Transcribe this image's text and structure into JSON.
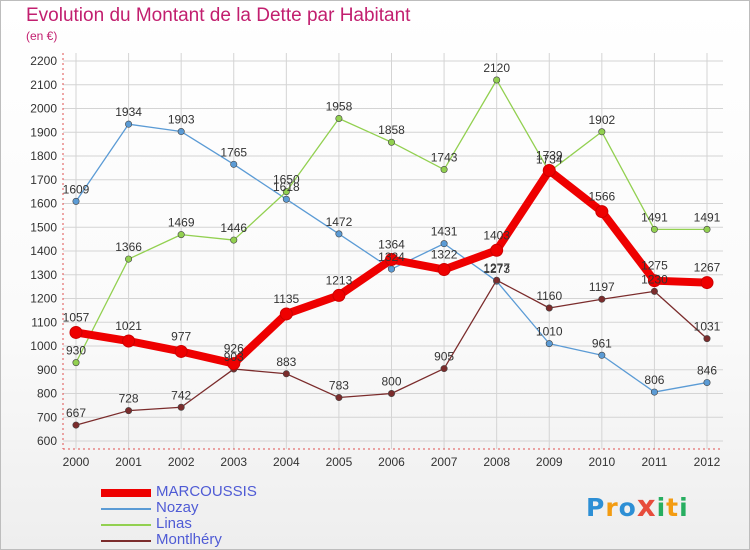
{
  "title": "Evolution du Montant de la Dette par Habitant",
  "subtitle": "(en €)",
  "logo": {
    "letters": [
      "P",
      "r",
      "o",
      "x",
      "i",
      "t",
      "i"
    ],
    "colors": [
      "#2d8fd5",
      "#f39c12",
      "#2d8fd5",
      "#e74c3c",
      "#27ae60",
      "#f39c12",
      "#27ae60"
    ]
  },
  "chart_data": {
    "type": "line",
    "x": [
      "2000",
      "2001",
      "2002",
      "2003",
      "2004",
      "2005",
      "2006",
      "2007",
      "2008",
      "2009",
      "2010",
      "2011",
      "2012"
    ],
    "ylim": [
      600,
      2200
    ],
    "yticks": [
      600,
      700,
      800,
      900,
      1000,
      1100,
      1200,
      1300,
      1400,
      1500,
      1600,
      1700,
      1800,
      1900,
      2000,
      2100,
      2200
    ],
    "grid": true,
    "legend_position": "bottom-left",
    "series": [
      {
        "name": "MARCOUSSIS",
        "color": "#ee0000",
        "emphasis": true,
        "values": [
          1057,
          1021,
          977,
          926,
          1135,
          1213,
          1364,
          1322,
          1403,
          1739,
          1566,
          1275,
          1267
        ]
      },
      {
        "name": "Nozay",
        "color": "#5b9bd5",
        "values": [
          1609,
          1934,
          1903,
          1765,
          1618,
          1472,
          1324,
          1431,
          1273,
          1010,
          961,
          806,
          846
        ]
      },
      {
        "name": "Linas",
        "color": "#92d050",
        "values": [
          930,
          1366,
          1469,
          1446,
          1650,
          1958,
          1858,
          1743,
          2120,
          1734,
          1902,
          1491,
          1491
        ]
      },
      {
        "name": "Montlhéry",
        "color": "#7b2c2c",
        "values": [
          667,
          728,
          742,
          903,
          883,
          783,
          800,
          905,
          1277,
          1160,
          1197,
          1230,
          1031
        ]
      }
    ]
  }
}
